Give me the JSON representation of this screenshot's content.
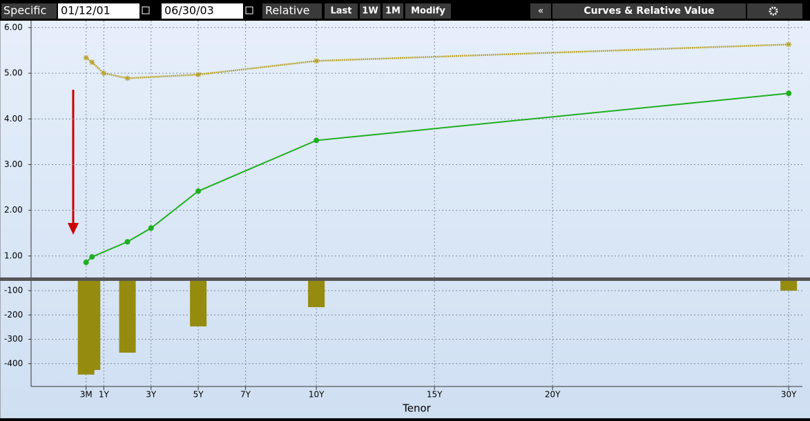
{
  "toolbar": {
    "mode": "Specific",
    "start_date": "01/12/01",
    "end_date": "06/30/03",
    "relative": "Relative",
    "buttons": [
      "Last",
      "1W",
      "1M",
      "Modify"
    ],
    "collapse": "«",
    "title": "Curves & Relative Value"
  },
  "chart_data": [
    {
      "type": "line",
      "xlim": [
        -2.08,
        30.58
      ],
      "ylim": [
        0.53,
        6.15
      ],
      "yticks": [
        {
          "value": 1,
          "label": "1.00"
        },
        {
          "value": 2,
          "label": "2.00"
        },
        {
          "value": 3,
          "label": "3.00"
        },
        {
          "value": 4,
          "label": "4.00"
        },
        {
          "value": 5,
          "label": "5.00"
        },
        {
          "value": 6,
          "label": "6.00"
        }
      ],
      "grid": true,
      "series": [
        {
          "color": "#b8a22a",
          "style": "dotted",
          "x": [
            0.25,
            0.5,
            1,
            2,
            5,
            10,
            30
          ],
          "values": [
            5.34,
            5.24,
            5.0,
            4.89,
            4.97,
            5.27,
            5.63
          ]
        },
        {
          "color": "#1fae1f",
          "style": "solid",
          "x": [
            0.25,
            0.5,
            2,
            3,
            5,
            10,
            30
          ],
          "values": [
            0.86,
            0.98,
            1.31,
            1.61,
            2.42,
            3.53,
            4.56
          ]
        }
      ]
    },
    {
      "type": "bar",
      "xlim": [
        -2.08,
        30.58
      ],
      "ylim": [
        -494,
        -60
      ],
      "yticks": [
        -100,
        -200,
        -300,
        -400
      ],
      "grid": true,
      "color": "#958b0f",
      "x": [
        0.25,
        0.5,
        2,
        5,
        10,
        30
      ],
      "values": [
        -445,
        -426,
        -355,
        -247,
        -168,
        -100
      ],
      "xticks": [
        {
          "value": 0.25,
          "label": "3M"
        },
        {
          "value": 1,
          "label": "1Y"
        },
        {
          "value": 3,
          "label": "3Y"
        },
        {
          "value": 5,
          "label": "5Y"
        },
        {
          "value": 7,
          "label": "7Y"
        },
        {
          "value": 10,
          "label": "10Y"
        },
        {
          "value": 15,
          "label": "15Y"
        },
        {
          "value": 20,
          "label": "20Y"
        },
        {
          "value": 30,
          "label": "30Y"
        }
      ],
      "x_label": "Tenor"
    }
  ]
}
